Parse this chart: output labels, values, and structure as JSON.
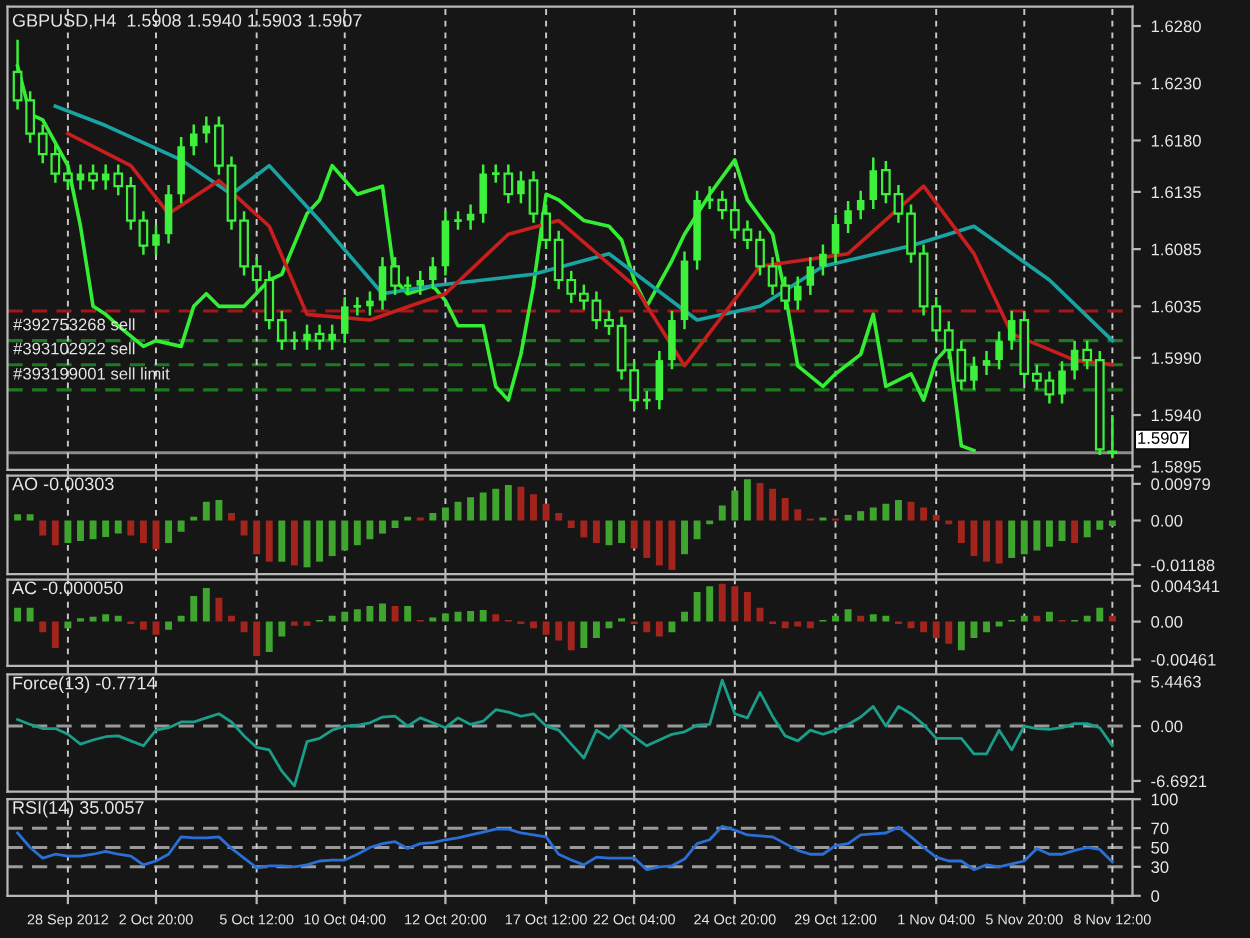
{
  "chart_data": [
    {
      "type": "candlestick",
      "title": "GBPUSD,H4  1.5908 1.5940 1.5903 1.5907",
      "color": "#3cf03c",
      "categories": [
        null,
        null,
        null,
        null,
        null,
        null,
        null,
        null,
        null,
        null,
        null,
        null,
        null,
        null,
        null,
        null,
        null,
        null,
        null,
        null,
        null,
        null,
        null,
        null,
        null,
        null,
        null,
        null,
        null,
        null,
        null,
        null,
        null,
        null,
        null,
        null,
        null,
        null,
        null,
        null,
        null,
        null,
        null,
        null,
        null,
        null,
        null,
        null,
        null,
        null,
        null,
        null,
        null,
        null,
        null,
        null,
        null,
        null,
        null,
        null,
        null,
        null,
        null,
        null,
        null,
        null,
        null,
        null,
        null,
        null,
        null,
        null,
        null,
        null,
        null,
        null,
        null,
        null,
        null,
        null,
        null,
        null,
        null,
        null,
        null,
        null,
        null,
        null
      ],
      "ohlc": [
        [
          1.624,
          1.6268,
          1.6207,
          1.6215
        ],
        [
          1.6215,
          1.6223,
          1.6178,
          1.6186
        ],
        [
          1.6186,
          1.6194,
          1.616,
          1.6168
        ],
        [
          1.6168,
          1.6176,
          1.6143,
          1.6151
        ],
        [
          1.6151,
          1.6159,
          1.6137,
          1.6145
        ],
        [
          1.6145,
          1.6159,
          1.6137,
          1.6151
        ],
        [
          1.6151,
          1.6159,
          1.6137,
          1.6145
        ],
        [
          1.6145,
          1.6159,
          1.6137,
          1.6151
        ],
        [
          1.6151,
          1.6159,
          1.6132,
          1.614
        ],
        [
          1.614,
          1.6148,
          1.6102,
          1.611
        ],
        [
          1.611,
          1.6118,
          1.608,
          1.6088
        ],
        [
          1.6088,
          1.6106,
          1.608,
          1.6098
        ],
        [
          1.6098,
          1.6141,
          1.609,
          1.6133
        ],
        [
          1.6133,
          1.6183,
          1.6125,
          1.6175
        ],
        [
          1.6175,
          1.6194,
          1.6167,
          1.6186
        ],
        [
          1.6186,
          1.6201,
          1.6178,
          1.6193
        ],
        [
          1.6193,
          1.6201,
          1.615,
          1.6158
        ],
        [
          1.6158,
          1.6166,
          1.6102,
          1.611
        ],
        [
          1.611,
          1.6118,
          1.6062,
          1.607
        ],
        [
          1.607,
          1.6078,
          1.605,
          1.6058
        ],
        [
          1.6058,
          1.6066,
          1.6015,
          1.6023
        ],
        [
          1.6023,
          1.6031,
          1.5997,
          1.6005
        ],
        [
          1.6005,
          1.6013,
          1.5997,
          1.6005
        ],
        [
          1.6005,
          1.6019,
          1.5997,
          1.6011
        ],
        [
          1.6011,
          1.6019,
          1.5997,
          1.6005
        ],
        [
          1.6005,
          1.6019,
          1.5997,
          1.6011
        ],
        [
          1.6011,
          1.6043,
          1.6003,
          1.6035
        ],
        [
          1.6035,
          1.6043,
          1.6027,
          1.6035
        ],
        [
          1.6035,
          1.6048,
          1.6027,
          1.604
        ],
        [
          1.604,
          1.6078,
          1.6032,
          1.607
        ],
        [
          1.607,
          1.6078,
          1.6045,
          1.6053
        ],
        [
          1.6053,
          1.6061,
          1.6045,
          1.6053
        ],
        [
          1.6053,
          1.6066,
          1.6045,
          1.6058
        ],
        [
          1.6058,
          1.6078,
          1.605,
          1.607
        ],
        [
          1.607,
          1.6118,
          1.6062,
          1.611
        ],
        [
          1.611,
          1.6118,
          1.6102,
          1.611
        ],
        [
          1.611,
          1.6124,
          1.6102,
          1.6116
        ],
        [
          1.6116,
          1.6159,
          1.6108,
          1.6151
        ],
        [
          1.6151,
          1.6159,
          1.6143,
          1.6151
        ],
        [
          1.6151,
          1.6159,
          1.6125,
          1.6133
        ],
        [
          1.6133,
          1.6153,
          1.6125,
          1.6145
        ],
        [
          1.6145,
          1.6153,
          1.6108,
          1.6116
        ],
        [
          1.6116,
          1.6124,
          1.6085,
          1.6093
        ],
        [
          1.6093,
          1.6101,
          1.605,
          1.6058
        ],
        [
          1.6058,
          1.6066,
          1.6038,
          1.6046
        ],
        [
          1.6046,
          1.6054,
          1.6032,
          1.604
        ],
        [
          1.604,
          1.6048,
          1.6015,
          1.6023
        ],
        [
          1.6023,
          1.6031,
          1.601,
          1.6018
        ],
        [
          1.6018,
          1.6026,
          1.5971,
          1.5979
        ],
        [
          1.5979,
          1.5987,
          1.5945,
          1.5953
        ],
        [
          1.5953,
          1.5961,
          1.5945,
          1.5953
        ],
        [
          1.5953,
          1.5996,
          1.5945,
          1.5988
        ],
        [
          1.5988,
          1.6031,
          1.598,
          1.6023
        ],
        [
          1.6023,
          1.6083,
          1.6015,
          1.6075
        ],
        [
          1.6075,
          1.6136,
          1.6067,
          1.6128
        ],
        [
          1.6128,
          1.614,
          1.612,
          1.6128
        ],
        [
          1.6128,
          1.6136,
          1.6111,
          1.6119
        ],
        [
          1.6119,
          1.6127,
          1.6094,
          1.6102
        ],
        [
          1.6102,
          1.611,
          1.6085,
          1.6093
        ],
        [
          1.6093,
          1.6101,
          1.6062,
          1.607
        ],
        [
          1.607,
          1.6078,
          1.6045,
          1.6053
        ],
        [
          1.6053,
          1.6061,
          1.6032,
          1.604
        ],
        [
          1.604,
          1.6061,
          1.6032,
          1.6053
        ],
        [
          1.6053,
          1.6078,
          1.6045,
          1.607
        ],
        [
          1.607,
          1.6089,
          1.6062,
          1.6081
        ],
        [
          1.6081,
          1.6115,
          1.6073,
          1.6107
        ],
        [
          1.6107,
          1.6127,
          1.6099,
          1.6119
        ],
        [
          1.6119,
          1.6136,
          1.6111,
          1.6128
        ],
        [
          1.6128,
          1.6165,
          1.612,
          1.6154
        ],
        [
          1.6154,
          1.6162,
          1.6125,
          1.6133
        ],
        [
          1.6133,
          1.6141,
          1.6108,
          1.6116
        ],
        [
          1.6116,
          1.6124,
          1.6073,
          1.6081
        ],
        [
          1.6081,
          1.6089,
          1.6027,
          1.6035
        ],
        [
          1.6035,
          1.6043,
          1.6006,
          1.6014
        ],
        [
          1.6014,
          1.6022,
          1.5989,
          1.5997
        ],
        [
          1.5997,
          1.6005,
          1.5962,
          1.597
        ],
        [
          1.597,
          1.5991,
          1.5962,
          1.5983
        ],
        [
          1.5983,
          1.5996,
          1.5975,
          1.5988
        ],
        [
          1.5988,
          1.6013,
          1.598,
          1.6005
        ],
        [
          1.6005,
          1.6031,
          1.5997,
          1.6023
        ],
        [
          1.6023,
          1.6031,
          1.5968,
          1.5976
        ],
        [
          1.5976,
          1.5984,
          1.5962,
          1.597
        ],
        [
          1.597,
          1.5978,
          1.595,
          1.5958
        ],
        [
          1.5958,
          1.5987,
          1.595,
          1.5979
        ],
        [
          1.5979,
          1.6005,
          1.5971,
          1.5997
        ],
        [
          1.5997,
          1.6005,
          1.598,
          1.5988
        ],
        [
          1.5988,
          1.5996,
          1.5905,
          1.591
        ],
        [
          1.5908,
          1.594,
          1.5903,
          1.5907
        ]
      ],
      "series": [
        {
          "type": "line",
          "color": "#33ee33",
          "values": [
            1.6245,
            1.6203,
            1.6198,
            null,
            1.6158,
            1.6105,
            1.6035,
            1.6028,
            1.6018,
            null,
            1.6,
            1.6005,
            null,
            1.6,
            1.6035,
            1.6046,
            1.6035,
            null,
            1.6035,
            null,
            1.6058,
            1.6063,
            null,
            1.6116,
            1.6128,
            1.6158,
            null,
            1.6133,
            null,
            1.614,
            1.6058,
            1.6046,
            null,
            1.6053,
            1.604,
            1.6018,
            null,
            1.6018,
            1.5965,
            1.5953,
            1.5993,
            1.6053,
            1.6133,
            1.6128,
            null,
            1.611,
            null,
            1.6105,
            1.6093,
            1.6058,
            1.6035,
            null,
            1.6075,
            1.6098,
            null,
            1.6133,
            null,
            1.6163,
            1.6128,
            null,
            1.6098,
            1.6046,
            1.5983,
            null,
            1.5965,
            1.5976,
            null,
            1.5993,
            1.6028,
            1.5965,
            null,
            1.5976,
            1.5953,
            1.5988,
            1.6,
            1.5913,
            1.5909,
            null,
            null,
            null,
            null,
            null,
            null,
            null,
            null,
            null,
            null,
            null
          ]
        },
        {
          "type": "line",
          "color": "#1aa3a3",
          "values": [
            null,
            null,
            null,
            1.621,
            null,
            null,
            null,
            1.6193,
            null,
            null,
            null,
            null,
            null,
            1.6163,
            null,
            null,
            null,
            1.6133,
            null,
            null,
            1.6158,
            null,
            null,
            null,
            1.611,
            null,
            null,
            null,
            null,
            1.6046,
            null,
            null,
            null,
            1.6053,
            null,
            null,
            null,
            null,
            null,
            null,
            null,
            1.6063,
            null,
            null,
            null,
            null,
            null,
            1.6081,
            null,
            null,
            null,
            null,
            null,
            null,
            1.6023,
            null,
            null,
            null,
            null,
            1.6035,
            null,
            null,
            null,
            null,
            1.607,
            null,
            null,
            null,
            null,
            null,
            null,
            1.6088,
            null,
            null,
            null,
            null,
            1.6105,
            null,
            null,
            null,
            null,
            null,
            1.6058,
            null,
            null,
            null,
            null,
            1.6005
          ]
        },
        {
          "type": "line",
          "color": "#c81e1e",
          "values": [
            null,
            null,
            null,
            null,
            1.6186,
            null,
            null,
            null,
            null,
            1.6158,
            null,
            null,
            1.6116,
            null,
            null,
            null,
            1.6145,
            null,
            null,
            null,
            1.6105,
            null,
            null,
            1.6028,
            null,
            null,
            null,
            null,
            1.6023,
            null,
            null,
            null,
            null,
            null,
            1.6046,
            null,
            null,
            null,
            null,
            1.6098,
            null,
            null,
            null,
            1.611,
            null,
            null,
            null,
            null,
            null,
            1.6053,
            null,
            null,
            null,
            1.5983,
            null,
            null,
            null,
            null,
            null,
            1.607,
            null,
            null,
            null,
            null,
            null,
            null,
            1.6081,
            null,
            null,
            null,
            null,
            null,
            1.614,
            null,
            null,
            null,
            1.6081,
            null,
            null,
            1.6011,
            null,
            null,
            null,
            null,
            1.5988,
            null,
            null,
            1.5984
          ]
        }
      ],
      "ref_lines": [
        {
          "axis": "y",
          "value": 1.6031,
          "color": "#a01818",
          "line_style": "dashed"
        },
        {
          "axis": "y",
          "value": 1.6005,
          "label": "#392753268 sell",
          "color": "#1e7a1e",
          "line_style": "dashed"
        },
        {
          "axis": "y",
          "value": 1.5984,
          "label": "#393102922 sell",
          "color": "#1e7a1e",
          "line_style": "dashed"
        },
        {
          "axis": "y",
          "value": 1.5962,
          "label": "#393199001 sell limit",
          "color": "#1e7a1e",
          "line_style": "dashed"
        },
        {
          "axis": "y",
          "value": 1.5907,
          "label": "1.5907",
          "color": "#8c8c8c",
          "line_style": "solid"
        }
      ],
      "ylim": [
        1.5892,
        1.6297
      ],
      "yticks": [
        {
          "value": 1.628,
          "label": "1.6280"
        },
        {
          "value": 1.623,
          "label": "1.6230"
        },
        {
          "value": 1.618,
          "label": "1.6180"
        },
        1.6135,
        1.6085,
        1.6035,
        {
          "value": 1.599,
          "label": "1.5990"
        },
        {
          "value": 1.594,
          "label": "1.5940"
        },
        1.5895
      ],
      "tick_labels": "y",
      "grid": "x"
    },
    {
      "type": "bar",
      "title": "AO -0.00303",
      "categories": [
        null,
        null,
        null,
        null,
        null,
        null,
        null,
        null,
        null,
        null,
        null,
        null,
        null,
        null,
        null,
        null,
        null,
        null,
        null,
        null,
        null,
        null,
        null,
        null,
        null,
        null,
        null,
        null,
        null,
        null,
        null,
        null,
        null,
        null,
        null,
        null,
        null,
        null,
        null,
        null,
        null,
        null,
        null,
        null,
        null,
        null,
        null,
        null,
        null,
        null,
        null,
        null,
        null,
        null,
        null,
        null,
        null,
        null,
        null,
        null,
        null,
        null,
        null,
        null,
        null,
        null,
        null,
        null,
        null,
        null,
        null,
        null,
        null,
        null,
        null,
        null,
        null,
        null,
        null,
        null,
        null,
        null,
        null,
        null,
        null,
        null,
        null,
        null
      ],
      "values": [
        0.0017,
        0.0017,
        -0.004,
        -0.0066,
        -0.006,
        -0.0055,
        -0.005,
        -0.0044,
        -0.0035,
        -0.004,
        -0.006,
        -0.0077,
        -0.006,
        -0.003,
        0.001,
        0.005,
        0.0055,
        0.002,
        -0.004,
        -0.009,
        -0.011,
        -0.011,
        -0.012,
        -0.0125,
        -0.011,
        -0.0095,
        -0.008,
        -0.0066,
        -0.005,
        -0.0035,
        -0.002,
        0.001,
        0.0008,
        0.002,
        0.0035,
        0.005,
        0.0062,
        0.0075,
        0.0085,
        0.0095,
        0.009,
        0.007,
        0.0045,
        0.002,
        -0.002,
        -0.0045,
        -0.006,
        -0.0066,
        -0.006,
        -0.0075,
        -0.01,
        -0.012,
        -0.0132,
        -0.009,
        -0.005,
        -0.001,
        0.004,
        0.008,
        0.011,
        0.01,
        0.0085,
        0.006,
        0.003,
        0.0005,
        0.0008,
        0.0005,
        0.0015,
        0.0025,
        0.0035,
        0.0045,
        0.0055,
        0.005,
        0.0035,
        0.0015,
        -0.001,
        -0.006,
        -0.0095,
        -0.011,
        -0.0115,
        -0.01,
        -0.009,
        -0.008,
        -0.007,
        -0.0055,
        -0.006,
        -0.0045,
        -0.0025,
        -0.0015
      ],
      "colors": [
        "#3fa52f",
        "#3fa52f",
        "#a3241c",
        "#a3241c",
        "#3fa52f",
        "#3fa52f",
        "#3fa52f",
        "#3fa52f",
        "#3fa52f",
        "#a3241c",
        "#a3241c",
        "#a3241c",
        "#3fa52f",
        "#3fa52f",
        "#3fa52f",
        "#3fa52f",
        "#3fa52f",
        "#a3241c",
        "#a3241c",
        "#a3241c",
        "#a3241c",
        "#3fa52f",
        "#a3241c",
        "#3fa52f",
        "#3fa52f",
        "#3fa52f",
        "#3fa52f",
        "#3fa52f",
        "#3fa52f",
        "#3fa52f",
        "#3fa52f",
        "#3fa52f",
        "#a3241c",
        "#3fa52f",
        "#3fa52f",
        "#3fa52f",
        "#3fa52f",
        "#3fa52f",
        "#3fa52f",
        "#3fa52f",
        "#a3241c",
        "#a3241c",
        "#a3241c",
        "#a3241c",
        "#a3241c",
        "#a3241c",
        "#a3241c",
        "#3fa52f",
        "#3fa52f",
        "#a3241c",
        "#a3241c",
        "#a3241c",
        "#a3241c",
        "#3fa52f",
        "#3fa52f",
        "#3fa52f",
        "#3fa52f",
        "#3fa52f",
        "#3fa52f",
        "#a3241c",
        "#a3241c",
        "#a3241c",
        "#a3241c",
        "#a3241c",
        "#3fa52f",
        "#a3241c",
        "#3fa52f",
        "#3fa52f",
        "#3fa52f",
        "#3fa52f",
        "#3fa52f",
        "#a3241c",
        "#a3241c",
        "#a3241c",
        "#a3241c",
        "#a3241c",
        "#a3241c",
        "#a3241c",
        "#a3241c",
        "#3fa52f",
        "#3fa52f",
        "#3fa52f",
        "#3fa52f",
        "#3fa52f",
        "#a3241c",
        "#3fa52f",
        "#3fa52f",
        "#3fa52f"
      ],
      "ylim": [
        -0.0143,
        0.012
      ],
      "yticks": [
        0.00979,
        {
          "value": 0,
          "label": "0.00"
        },
        -0.01188
      ],
      "tick_labels": "y",
      "grid": "x"
    },
    {
      "type": "bar",
      "title": "AC -0.000050",
      "categories": [
        null,
        null,
        null,
        null,
        null,
        null,
        null,
        null,
        null,
        null,
        null,
        null,
        null,
        null,
        null,
        null,
        null,
        null,
        null,
        null,
        null,
        null,
        null,
        null,
        null,
        null,
        null,
        null,
        null,
        null,
        null,
        null,
        null,
        null,
        null,
        null,
        null,
        null,
        null,
        null,
        null,
        null,
        null,
        null,
        null,
        null,
        null,
        null,
        null,
        null,
        null,
        null,
        null,
        null,
        null,
        null,
        null,
        null,
        null,
        null,
        null,
        null,
        null,
        null,
        null,
        null,
        null,
        null,
        null,
        null,
        null,
        null,
        null,
        null,
        null,
        null,
        null,
        null,
        null,
        null,
        null,
        null,
        null,
        null,
        null,
        null,
        null,
        null
      ],
      "values": [
        0.0017,
        0.0017,
        -0.0013,
        -0.0032,
        -0.0008,
        0.0004,
        0.0006,
        0.0009,
        0.0007,
        -0.0003,
        -0.001,
        -0.0016,
        -0.001,
        0.0007,
        0.0031,
        0.0041,
        0.0029,
        0.0007,
        -0.0013,
        -0.0042,
        -0.0037,
        -0.0018,
        -0.0005,
        -0.0005,
        0.0002,
        0.0007,
        0.0012,
        0.0015,
        0.0019,
        0.0022,
        0.0019,
        0.0019,
        0.0002,
        0.0005,
        0.001,
        0.0012,
        0.0013,
        0.0014,
        0.0009,
        0.0002,
        -0.0003,
        -0.0008,
        -0.0016,
        -0.0023,
        -0.0035,
        -0.0032,
        -0.002,
        -0.0008,
        0.0004,
        -0.0003,
        -0.0013,
        -0.0018,
        -0.0013,
        0.0012,
        0.0036,
        0.0043,
        0.0046,
        0.0043,
        0.0036,
        0.0017,
        -0.0003,
        -0.0008,
        -0.0006,
        -0.0008,
        0.0002,
        0.0007,
        0.0015,
        0.0007,
        0.0009,
        0.0007,
        -0.0003,
        -0.0008,
        -0.0013,
        -0.002,
        -0.0027,
        -0.0035,
        -0.002,
        -0.0013,
        -0.0006,
        0.0002,
        0.0007,
        0.0007,
        0.0012,
        0.0002,
        0.0002,
        0.0007,
        0.0017,
        0.0007
      ],
      "colors": [
        "#3fa52f",
        "#3fa52f",
        "#a3241c",
        "#a3241c",
        "#3fa52f",
        "#3fa52f",
        "#3fa52f",
        "#3fa52f",
        "#3fa52f",
        "#a3241c",
        "#a3241c",
        "#a3241c",
        "#3fa52f",
        "#3fa52f",
        "#3fa52f",
        "#3fa52f",
        "#a3241c",
        "#a3241c",
        "#a3241c",
        "#a3241c",
        "#3fa52f",
        "#3fa52f",
        "#a3241c",
        "#a3241c",
        "#3fa52f",
        "#3fa52f",
        "#3fa52f",
        "#3fa52f",
        "#3fa52f",
        "#3fa52f",
        "#a3241c",
        "#3fa52f",
        "#a3241c",
        "#3fa52f",
        "#3fa52f",
        "#3fa52f",
        "#3fa52f",
        "#3fa52f",
        "#a3241c",
        "#a3241c",
        "#a3241c",
        "#a3241c",
        "#a3241c",
        "#a3241c",
        "#a3241c",
        "#3fa52f",
        "#3fa52f",
        "#3fa52f",
        "#3fa52f",
        "#a3241c",
        "#a3241c",
        "#a3241c",
        "#3fa52f",
        "#3fa52f",
        "#3fa52f",
        "#3fa52f",
        "#a3241c",
        "#a3241c",
        "#a3241c",
        "#a3241c",
        "#a3241c",
        "#a3241c",
        "#a3241c",
        "#a3241c",
        "#3fa52f",
        "#3fa52f",
        "#3fa52f",
        "#a3241c",
        "#3fa52f",
        "#3fa52f",
        "#a3241c",
        "#a3241c",
        "#a3241c",
        "#a3241c",
        "#a3241c",
        "#3fa52f",
        "#3fa52f",
        "#3fa52f",
        "#3fa52f",
        "#3fa52f",
        "#3fa52f",
        "#a3241c",
        "#3fa52f",
        "#a3241c",
        "#3fa52f",
        "#3fa52f",
        "#3fa52f",
        "#a3241c"
      ],
      "ylim": [
        -0.0054,
        0.0051
      ],
      "yticks": [
        0.004341,
        {
          "value": 0,
          "label": "0.00"
        },
        {
          "value": -0.00461,
          "label": "-0.00461"
        }
      ],
      "tick_labels": "y",
      "grid": "x"
    },
    {
      "type": "line",
      "title": "Force(13) -0.7714",
      "color": "#1a9e8a",
      "categories": [
        null,
        null,
        null,
        null,
        null,
        null,
        null,
        null,
        null,
        null,
        null,
        null,
        null,
        null,
        null,
        null,
        null,
        null,
        null,
        null,
        null,
        null,
        null,
        null,
        null,
        null,
        null,
        null,
        null,
        null,
        null,
        null,
        null,
        null,
        null,
        null,
        null,
        null,
        null,
        null,
        null,
        null,
        null,
        null,
        null,
        null,
        null,
        null,
        null,
        null,
        null,
        null,
        null,
        null,
        null,
        null,
        null,
        null,
        null,
        null,
        null,
        null,
        null,
        null,
        null,
        null,
        null,
        null,
        null,
        null,
        null,
        null,
        null,
        null,
        null,
        null,
        null,
        null,
        null,
        null,
        null,
        null,
        null,
        null,
        null,
        null,
        null,
        null
      ],
      "values": [
        0.8,
        0.2,
        -0.3,
        -0.3,
        -1.0,
        -2.2,
        -1.7,
        -1.3,
        -1.2,
        -1.8,
        -2.4,
        -0.5,
        -0.2,
        0.5,
        0.5,
        1.0,
        1.5,
        0.5,
        -1.2,
        -2.6,
        -2.9,
        -5.5,
        -7.3,
        -1.9,
        -1.5,
        -0.5,
        0,
        0.1,
        0.4,
        1.1,
        1.2,
        0,
        1.0,
        0.4,
        -0.2,
        1.0,
        0.2,
        0.6,
        2.0,
        1.7,
        1.2,
        1.5,
        0,
        -0.5,
        -2.2,
        -3.9,
        -0.5,
        -1.5,
        0,
        -1.3,
        -2.4,
        -1.7,
        -1.0,
        -0.7,
        0.1,
        0.2,
        5.6,
        1.5,
        1.0,
        4.1,
        1.2,
        -1.2,
        -1.8,
        -0.5,
        -1.0,
        -0.5,
        0.2,
        1.1,
        2.4,
        0,
        2.4,
        1.5,
        0.2,
        -1.5,
        -1.5,
        -1.5,
        -3.4,
        -3.4,
        -0.5,
        -2.9,
        0,
        -0.3,
        -0.4,
        -0.2,
        0.3,
        0.3,
        -0.2,
        -2.4
      ],
      "ref_lines": [
        {
          "axis": "y",
          "value": 0,
          "color": "#9a9a9a",
          "line_style": "dashed"
        }
      ],
      "ylim": [
        -8.0,
        6.3
      ],
      "yticks": [
        5.4463,
        {
          "value": 0,
          "label": "0.00"
        },
        -6.6921
      ],
      "tick_labels": "y",
      "grid": "x"
    },
    {
      "type": "line",
      "title": "RSI(14) 35.0057",
      "color": "#2a6fd6",
      "categories": [
        null,
        null,
        null,
        null,
        "28 Sep 2012",
        null,
        null,
        null,
        null,
        null,
        null,
        "2 Oct 20:00",
        null,
        null,
        null,
        null,
        null,
        null,
        null,
        "5 Oct 12:00",
        null,
        null,
        null,
        null,
        null,
        null,
        "10 Oct 04:00",
        null,
        null,
        null,
        null,
        null,
        null,
        null,
        "12 Oct 20:00",
        null,
        null,
        null,
        null,
        null,
        null,
        null,
        "17 Oct 12:00",
        null,
        null,
        null,
        null,
        null,
        null,
        "22 Oct 04:00",
        null,
        null,
        null,
        null,
        null,
        null,
        null,
        "24 Oct 20:00",
        null,
        null,
        null,
        null,
        null,
        null,
        null,
        "29 Oct 12:00",
        null,
        null,
        null,
        null,
        null,
        null,
        null,
        "1 Nov 04:00",
        null,
        null,
        null,
        null,
        null,
        null,
        "5 Nov 20:00",
        null,
        null,
        null,
        null,
        null,
        null,
        "8 Nov 12:00"
      ],
      "values": [
        65,
        50,
        39,
        43,
        41,
        41,
        43,
        46,
        43,
        41,
        32,
        36,
        43,
        61,
        60,
        60,
        61,
        49,
        39,
        29,
        31,
        31,
        30,
        32,
        36,
        37,
        37,
        43,
        50,
        54,
        56,
        49,
        54,
        55,
        58,
        60,
        63,
        66,
        69,
        69,
        65,
        63,
        61,
        43,
        37,
        32,
        40,
        39,
        39,
        39,
        27,
        30,
        31,
        38,
        54,
        58,
        72,
        68,
        63,
        62,
        61,
        54,
        47,
        43,
        43,
        52,
        54,
        63,
        64,
        65,
        71,
        61,
        50,
        40,
        36,
        36,
        27,
        32,
        30,
        33,
        36,
        49,
        43,
        43,
        47,
        50,
        48,
        35
      ],
      "ref_lines": [
        {
          "axis": "y",
          "value": 70,
          "color": "#9a9a9a",
          "line_style": "dashed"
        },
        {
          "axis": "y",
          "value": 50,
          "color": "#9a9a9a",
          "line_style": "dashed"
        },
        {
          "axis": "y",
          "value": 30,
          "color": "#9a9a9a",
          "line_style": "dashed"
        }
      ],
      "ylim": [
        0,
        100
      ],
      "yticks": [
        100,
        70,
        50,
        30,
        0
      ],
      "grid": "x"
    }
  ]
}
